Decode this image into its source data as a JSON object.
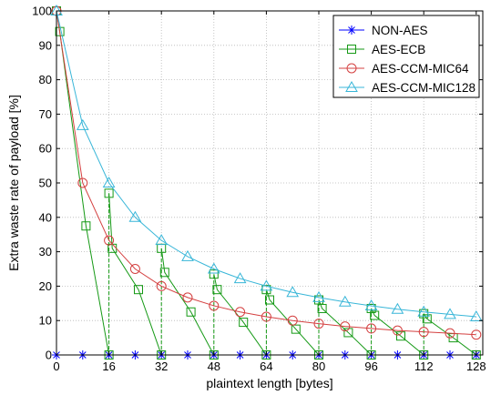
{
  "chart_data": {
    "type": "line",
    "xlabel": "plaintext length [bytes]",
    "ylabel": "Extra waste rate of payload [%]",
    "xlim": [
      0,
      130
    ],
    "ylim": [
      0,
      100
    ],
    "xticks": [
      0,
      16,
      32,
      48,
      64,
      80,
      96,
      112,
      128
    ],
    "yticks": [
      0,
      10,
      20,
      30,
      40,
      50,
      60,
      70,
      80,
      90,
      100
    ],
    "grid": true,
    "legend_position": "top-right",
    "series": [
      {
        "name": "NON-AES",
        "color": "#0000ff",
        "marker": "star",
        "x": [
          0,
          8,
          16,
          24,
          32,
          40,
          48,
          56,
          64,
          72,
          80,
          88,
          96,
          104,
          112,
          120,
          128
        ],
        "y": [
          0,
          0,
          0,
          0,
          0,
          0,
          0,
          0,
          0,
          0,
          0,
          0,
          0,
          0,
          0,
          0,
          0
        ]
      },
      {
        "name": "AES-ECB",
        "color": "#159915",
        "marker": "square",
        "x": [
          0,
          1,
          9,
          16,
          16,
          17,
          25,
          32,
          32,
          33,
          41,
          48,
          48,
          49,
          57,
          64,
          64,
          65,
          73,
          80,
          80,
          81,
          89,
          96,
          96,
          97,
          105,
          112,
          112,
          113,
          121,
          128
        ],
        "y": [
          100,
          94,
          37.5,
          0,
          47,
          31,
          19,
          0,
          31,
          24,
          12.5,
          0,
          23.5,
          19,
          9.5,
          0,
          19,
          16,
          7.5,
          0,
          16,
          13.5,
          6.5,
          0,
          13.5,
          11.5,
          5.5,
          0,
          12,
          10.5,
          5,
          0
        ]
      },
      {
        "name": "AES-CCM-MIC64",
        "color": "#d44040",
        "marker": "circle",
        "x": [
          0,
          8,
          16,
          24,
          32,
          40,
          48,
          56,
          64,
          72,
          80,
          88,
          96,
          104,
          112,
          120,
          128
        ],
        "y": [
          100,
          50,
          33.3,
          25,
          20,
          16.7,
          14.3,
          12.5,
          11.1,
          10,
          9.1,
          8.3,
          7.7,
          7.1,
          6.7,
          6.3,
          5.9
        ]
      },
      {
        "name": "AES-CCM-MIC128",
        "color": "#38b6d8",
        "marker": "triangle",
        "x": [
          0,
          8,
          16,
          24,
          32,
          40,
          48,
          56,
          64,
          72,
          80,
          88,
          96,
          104,
          112,
          120,
          128
        ],
        "y": [
          100,
          66.7,
          50,
          40,
          33.3,
          28.6,
          25,
          22.2,
          20,
          18.2,
          16.7,
          15.4,
          14.3,
          13.3,
          12.5,
          11.8,
          11.1
        ]
      }
    ]
  }
}
